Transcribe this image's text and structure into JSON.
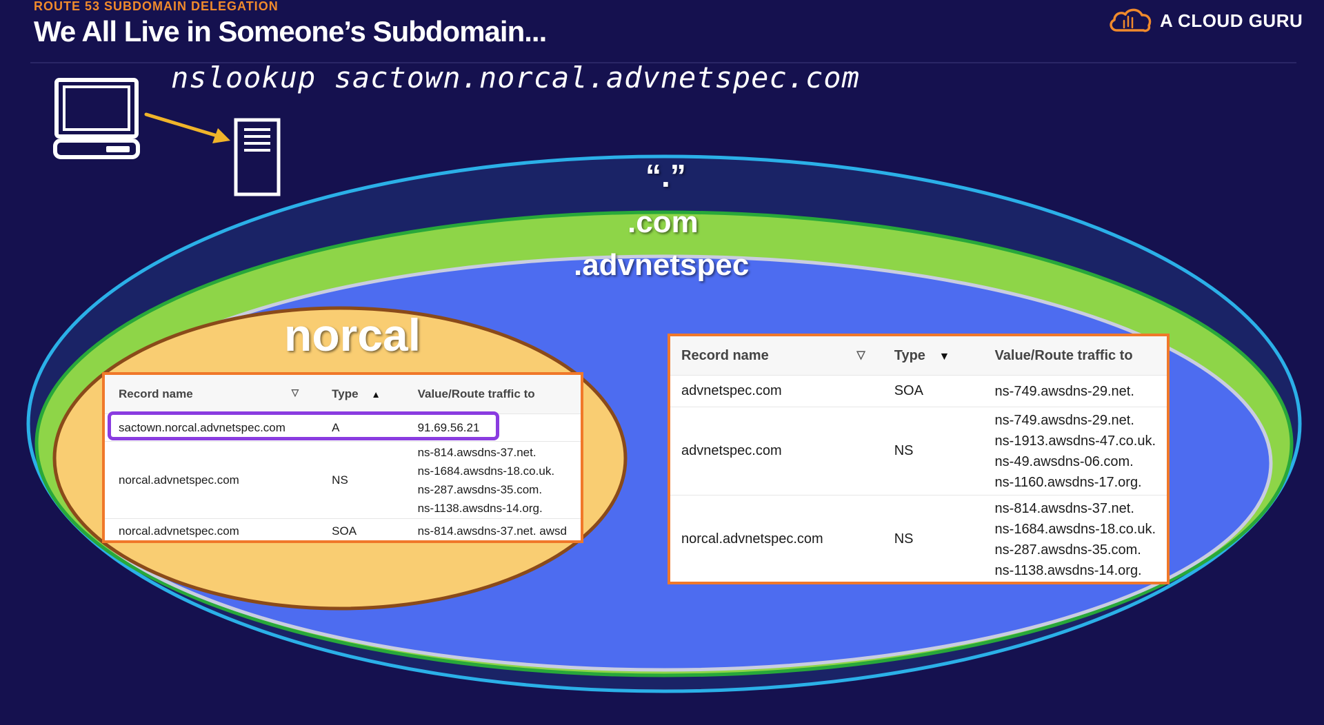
{
  "header": {
    "kicker": "ROUTE 53 SUBDOMAIN DELEGATION",
    "title": "We All Live in Someone’s Subdomain...",
    "brand": "A CLOUD GURU"
  },
  "command": "nslookup sactown.norcal.advnetspec.com",
  "icons": [
    "laptop-icon",
    "server-icon",
    "arrow-icon",
    "cloud-logo-icon"
  ],
  "zones": {
    "root": "“.”",
    "com": ".com",
    "advnetspec": ".advnetspec",
    "norcal": "norcal"
  },
  "colors": {
    "background": "#15114f",
    "root_ring": "#2bb0e8",
    "com_zone": "#8ed548",
    "advnetspec_zone": "#4d6cf0",
    "norcal_zone": "#f9cd72",
    "table_border": "#f0782a",
    "highlight": "#8a3ce0",
    "kicker": "#f08a2c"
  },
  "norcal_table": {
    "headers": [
      "Record name",
      "Type",
      "Value/Route traffic to"
    ],
    "sort": {
      "record_name": "▽",
      "type": "▲"
    },
    "rows": [
      {
        "name": "sactown.norcal.advnetspec.com",
        "type": "A",
        "values": [
          "91.69.56.21"
        ]
      },
      {
        "name": "norcal.advnetspec.com",
        "type": "NS",
        "values": [
          "ns-814.awsdns-37.net.",
          "ns-1684.awsdns-18.co.uk.",
          "ns-287.awsdns-35.com.",
          "ns-1138.awsdns-14.org."
        ]
      },
      {
        "name": "norcal.advnetspec.com",
        "type": "SOA",
        "values": [
          "ns-814.awsdns-37.net. awsd"
        ]
      }
    ]
  },
  "advnetspec_table": {
    "headers": [
      "Record name",
      "Type",
      "Value/Route traffic to"
    ],
    "sort": {
      "record_name": "▽",
      "type": "▼"
    },
    "rows": [
      {
        "name": "advnetspec.com",
        "type": "SOA",
        "values": [
          "ns-749.awsdns-29.net."
        ]
      },
      {
        "name": "advnetspec.com",
        "type": "NS",
        "values": [
          "ns-749.awsdns-29.net.",
          "ns-1913.awsdns-47.co.uk.",
          "ns-49.awsdns-06.com.",
          "ns-1160.awsdns-17.org."
        ]
      },
      {
        "name": "norcal.advnetspec.com",
        "type": "NS",
        "values": [
          "ns-814.awsdns-37.net.",
          "ns-1684.awsdns-18.co.uk.",
          "ns-287.awsdns-35.com.",
          "ns-1138.awsdns-14.org."
        ]
      }
    ]
  }
}
